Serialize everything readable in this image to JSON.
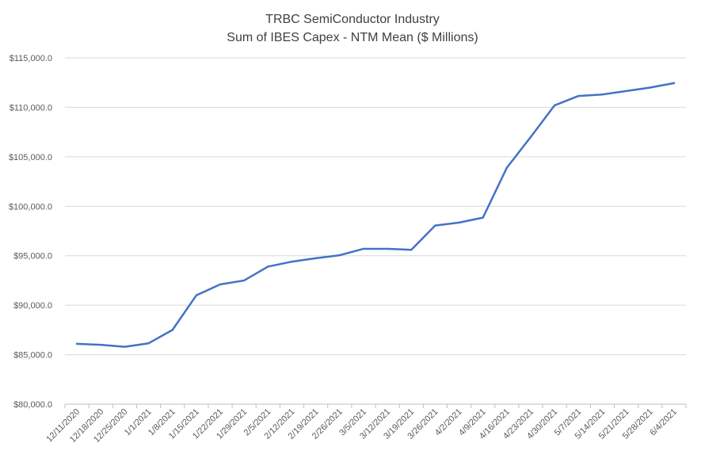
{
  "chart_data": {
    "type": "line",
    "title": "TRBC SemiConductor Industry",
    "subtitle": "Sum of IBES Capex - NTM Mean ($ Millions)",
    "xlabel": "",
    "ylabel": "",
    "ylim": [
      80000,
      115000
    ],
    "yticks": [
      80000,
      85000,
      90000,
      95000,
      100000,
      105000,
      110000,
      115000
    ],
    "ytick_labels": [
      "$80,000.0",
      "$85,000.0",
      "$90,000.0",
      "$95,000.0",
      "$100,000.0",
      "$105,000.0",
      "$110,000.0",
      "$115,000.0"
    ],
    "grid": true,
    "legend": "none",
    "categories": [
      "12/11/2020",
      "12/18/2020",
      "12/25/2020",
      "1/1/2021",
      "1/8/2021",
      "1/15/2021",
      "1/22/2021",
      "1/29/2021",
      "2/5/2021",
      "2/12/2021",
      "2/19/2021",
      "2/26/2021",
      "3/5/2021",
      "3/12/2021",
      "3/19/2021",
      "3/26/2021",
      "4/2/2021",
      "4/9/2021",
      "4/16/2021",
      "4/23/2021",
      "4/30/2021",
      "5/7/2021",
      "5/14/2021",
      "5/21/2021",
      "5/28/2021",
      "6/4/2021"
    ],
    "series": [
      {
        "color": "#4472c4",
        "values": [
          86100,
          86000,
          85800,
          86150,
          87500,
          91000,
          92100,
          92500,
          93900,
          94400,
          94750,
          95050,
          95700,
          95700,
          95600,
          98050,
          98350,
          98850,
          103900,
          107000,
          110200,
          111150,
          111300,
          111650,
          112000,
          112450
        ]
      }
    ],
    "colors": {
      "gridline": "#d9d9d9",
      "axis": "#bfbfbf",
      "line": "#4472c4"
    }
  }
}
